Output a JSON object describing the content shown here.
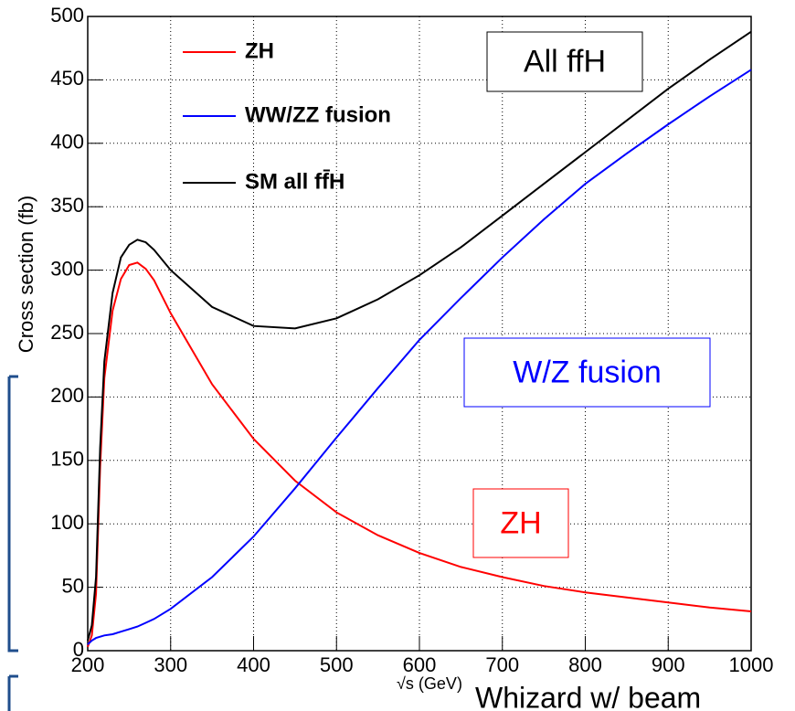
{
  "chart_data": {
    "type": "line",
    "x": [
      200,
      205,
      210,
      215,
      220,
      230,
      240,
      250,
      260,
      270,
      280,
      300,
      350,
      400,
      450,
      500,
      550,
      600,
      650,
      700,
      750,
      800,
      850,
      900,
      950,
      1000
    ],
    "series": [
      {
        "name": "ZH",
        "color": "#ff0000",
        "values": [
          3,
          12,
          45,
          145,
          215,
          268,
          293,
          304,
          306,
          301,
          292,
          266,
          210,
          167,
          134,
          109,
          91,
          77,
          66,
          58,
          51,
          46,
          42,
          38,
          34,
          31
        ]
      },
      {
        "name": "WW/ZZ fusion",
        "color": "#0000ff",
        "values": [
          5,
          8,
          10,
          11,
          12,
          13,
          15,
          17,
          19,
          22,
          25,
          33,
          58,
          90,
          128,
          168,
          207,
          245,
          278,
          310,
          340,
          368,
          392,
          415,
          437,
          458
        ]
      },
      {
        "name": "SM all ff̄H",
        "color": "#000000",
        "values": [
          8,
          20,
          58,
          160,
          228,
          282,
          310,
          320,
          324,
          322,
          316,
          300,
          271,
          256,
          254,
          262,
          277,
          296,
          318,
          343,
          368,
          393,
          418,
          443,
          466,
          488
        ]
      }
    ],
    "xlim": [
      200,
      1000
    ],
    "ylim": [
      0,
      500
    ],
    "xticks": [
      200,
      300,
      400,
      500,
      600,
      700,
      800,
      900,
      1000
    ],
    "yticks": [
      0,
      50,
      100,
      150,
      200,
      250,
      300,
      350,
      400,
      450,
      500
    ],
    "grid": true,
    "xlabel": "√s (GeV)",
    "ylabel": "Cross section (fb)",
    "annotations": [
      {
        "text": "All ffH",
        "color": "#000000"
      },
      {
        "text": "W/Z fusion",
        "color": "#0000ff"
      },
      {
        "text": "ZH",
        "color": "#ff0000"
      }
    ],
    "note": "Whizard w/ beam"
  }
}
